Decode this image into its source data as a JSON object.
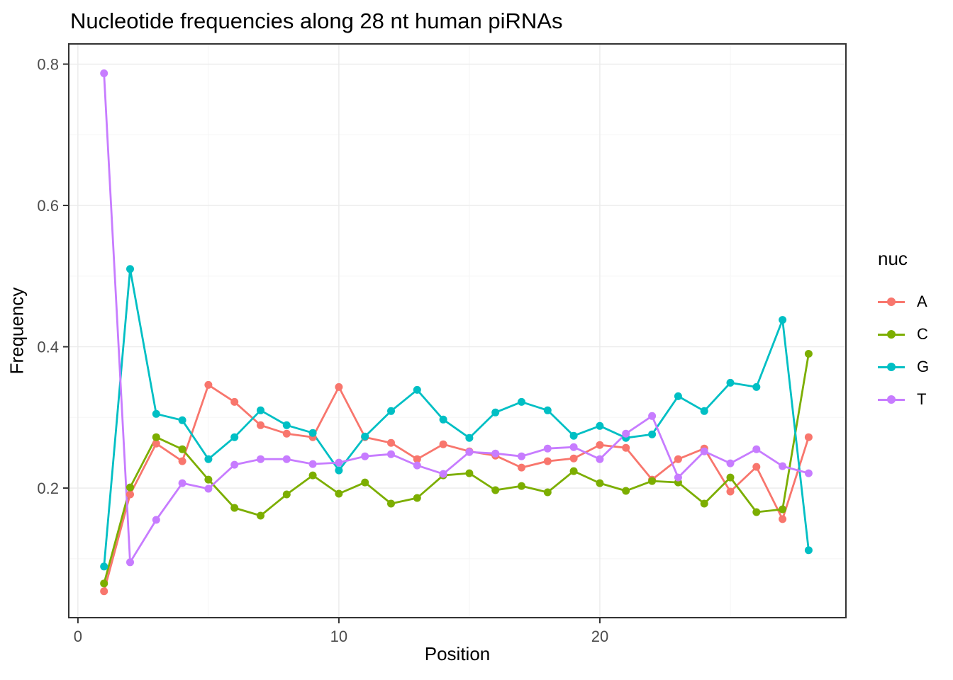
{
  "chart_data": {
    "type": "line",
    "title": "Nucleotide frequencies along 28 nt human piRNAs",
    "xlabel": "Position",
    "ylabel": "Frequency",
    "legend_title": "nuc",
    "legend_position": "right",
    "grid": true,
    "background": "#ffffff",
    "panel_border_color": "#333333",
    "major_grid_color": "#EBEBEB",
    "minor_grid_color": "#F5F5F5",
    "tick_label_color": "#4D4D4D",
    "x": [
      1,
      2,
      3,
      4,
      5,
      6,
      7,
      8,
      9,
      10,
      11,
      12,
      13,
      14,
      15,
      16,
      17,
      18,
      19,
      20,
      21,
      22,
      23,
      24,
      25,
      26,
      27,
      28
    ],
    "series": [
      {
        "name": "A",
        "color": "#F8766D",
        "values": [
          0.054,
          0.191,
          0.263,
          0.238,
          0.346,
          0.322,
          0.289,
          0.277,
          0.272,
          0.343,
          0.272,
          0.264,
          0.241,
          0.262,
          0.252,
          0.246,
          0.229,
          0.238,
          0.242,
          0.261,
          0.257,
          0.212,
          0.241,
          0.256,
          0.195,
          0.23,
          0.156,
          0.272
        ]
      },
      {
        "name": "C",
        "color": "#7CAE00",
        "values": [
          0.065,
          0.201,
          0.272,
          0.255,
          0.212,
          0.172,
          0.161,
          0.191,
          0.218,
          0.192,
          0.208,
          0.178,
          0.186,
          0.218,
          0.221,
          0.197,
          0.203,
          0.194,
          0.224,
          0.207,
          0.196,
          0.21,
          0.208,
          0.178,
          0.215,
          0.166,
          0.17,
          0.39
        ]
      },
      {
        "name": "G",
        "color": "#00BFC4",
        "values": [
          0.089,
          0.51,
          0.305,
          0.296,
          0.241,
          0.272,
          0.31,
          0.289,
          0.278,
          0.225,
          0.273,
          0.309,
          0.339,
          0.297,
          0.271,
          0.307,
          0.322,
          0.31,
          0.274,
          0.288,
          0.271,
          0.276,
          0.33,
          0.309,
          0.349,
          0.343,
          0.438,
          0.112
        ]
      },
      {
        "name": "T",
        "color": "#C77CFF",
        "values": [
          0.787,
          0.095,
          0.155,
          0.207,
          0.199,
          0.233,
          0.241,
          0.241,
          0.234,
          0.236,
          0.245,
          0.248,
          0.232,
          0.22,
          0.251,
          0.249,
          0.245,
          0.256,
          0.258,
          0.241,
          0.277,
          0.302,
          0.215,
          0.252,
          0.235,
          0.255,
          0.231,
          0.221
        ]
      }
    ],
    "x_axis": {
      "ticks": [
        0,
        10,
        20
      ],
      "tick_labels": [
        "0",
        "10",
        "20"
      ],
      "minor": [
        5,
        15,
        25
      ],
      "range": [
        -0.35,
        29.43
      ]
    },
    "y_axis": {
      "ticks": [
        0.2,
        0.4,
        0.6,
        0.8
      ],
      "tick_labels": [
        "0.2",
        "0.4",
        "0.6",
        "0.8"
      ],
      "minor": [
        0.1,
        0.3,
        0.5,
        0.7
      ],
      "range": [
        0.0166,
        0.8286
      ]
    }
  }
}
